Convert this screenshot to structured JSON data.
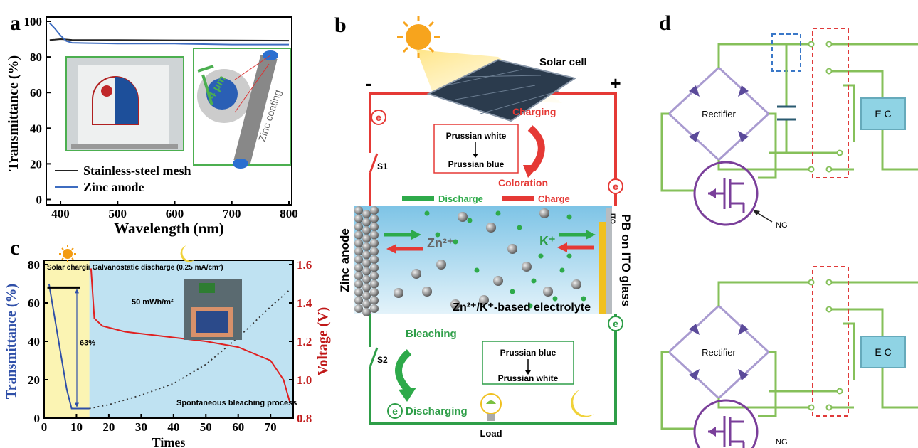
{
  "panel_labels": [
    "a",
    "b",
    "c",
    "d"
  ],
  "chart_data": [
    {
      "type": "line",
      "x_label": "Wavelength (nm)",
      "y_label": "Transmittance (%)",
      "x": [
        381,
        390,
        400,
        410,
        420,
        450,
        500,
        600,
        700,
        800
      ],
      "series": [
        {
          "name": "Stainless-steel mesh",
          "color": "#222222",
          "values": [
            89.5,
            89.7,
            90,
            89.8,
            89.6,
            89.5,
            89.5,
            89.4,
            89.3,
            89.2
          ]
        },
        {
          "name": "Zinc anode",
          "color": "#3d6cc0",
          "values": [
            99,
            96,
            92,
            89,
            88,
            87.8,
            87.5,
            87.5,
            87,
            87
          ]
        }
      ],
      "xlim": [
        375,
        805
      ],
      "xticks": [
        400,
        500,
        600,
        700,
        800
      ],
      "ylim": [
        -3,
        100
      ],
      "yticks": [
        0,
        20,
        40,
        60,
        80,
        100
      ],
      "legend": "lower left",
      "annotations": [
        "Zinc coating",
        "4 μm"
      ]
    },
    {
      "type": "line",
      "x_label": "Times",
      "y_label": "Transmittance (%)",
      "y2_label": "Voltage (V)",
      "series": [
        {
          "color": "#2f4fa8",
          "style": "solid",
          "x": [
            1.5,
            3,
            5,
            7,
            8.5,
            10,
            12,
            14
          ],
          "values": [
            70,
            55,
            35,
            15,
            5,
            5,
            5,
            5
          ]
        },
        {
          "color": "#333333",
          "style": "dotted",
          "x": [
            14,
            20,
            30,
            40,
            50,
            60,
            70,
            76
          ],
          "values": [
            5,
            7,
            12,
            18,
            28,
            42,
            58,
            67
          ]
        },
        {
          "color": "#e02020",
          "style": "solid",
          "axis": "y2",
          "x": [
            14.5,
            15.5,
            18,
            25,
            40,
            50,
            60,
            70,
            74,
            76
          ],
          "values": [
            1.58,
            1.32,
            1.28,
            1.25,
            1.22,
            1.2,
            1.17,
            1.1,
            1.0,
            0.88
          ]
        }
      ],
      "regions": [
        {
          "start": 0,
          "end": 14,
          "color": "#fbf4b3",
          "label": "Solar charging"
        },
        {
          "start": 14,
          "end": 77,
          "color": "#bfe2f2",
          "label": "Galvanostatic discharge (0.25 mA/cm²)"
        }
      ],
      "reference_line": {
        "x": [
          1,
          11
        ],
        "y": 68,
        "arrow_end": 5,
        "label": "63%"
      },
      "annotations": [
        "50 mWh/m²",
        "Spontaneous bleaching process"
      ],
      "xlim": [
        0,
        77
      ],
      "xticks": [
        0,
        10,
        20,
        30,
        40,
        50,
        60,
        70
      ],
      "ylim": [
        0,
        80
      ],
      "yticks": [
        0,
        20,
        40,
        60,
        80
      ],
      "y2lim": [
        0.8,
        1.6
      ],
      "y2ticks": [
        0.8,
        {
          "value": 1,
          "label": "1.0"
        },
        1.2,
        1.4,
        1.6
      ]
    }
  ],
  "diagram_b": {
    "solar_cell": "Solar cell",
    "minus": "-",
    "plus": "+",
    "electrons": [
      "e",
      "e",
      "e",
      "e"
    ],
    "switches": [
      "S1",
      "S2"
    ],
    "charging": "Charging",
    "charge_box": [
      "Prussian white",
      "Prussian blue"
    ],
    "coloration": "Coloration",
    "legend": [
      "Discharge",
      "Charge"
    ],
    "anode": "Zinc anode",
    "ions": [
      "Zn²⁺",
      "K⁺"
    ],
    "ito": "ITO",
    "cathode": "PB on ITO glass",
    "electrolyte": "Zn²⁺/K⁺-based electrolyte",
    "bleaching": "Bleaching",
    "discharging": "Discharging",
    "discharge_box": [
      "Prussian blue",
      "Prussian white"
    ],
    "load": "Load"
  },
  "diagram_d": {
    "circuits": [
      {
        "rectifier": "Rectifier",
        "ec": "E C",
        "ng": "NG"
      },
      {
        "rectifier": "Rectifier",
        "ec": "E C",
        "ng": "NG"
      }
    ]
  }
}
